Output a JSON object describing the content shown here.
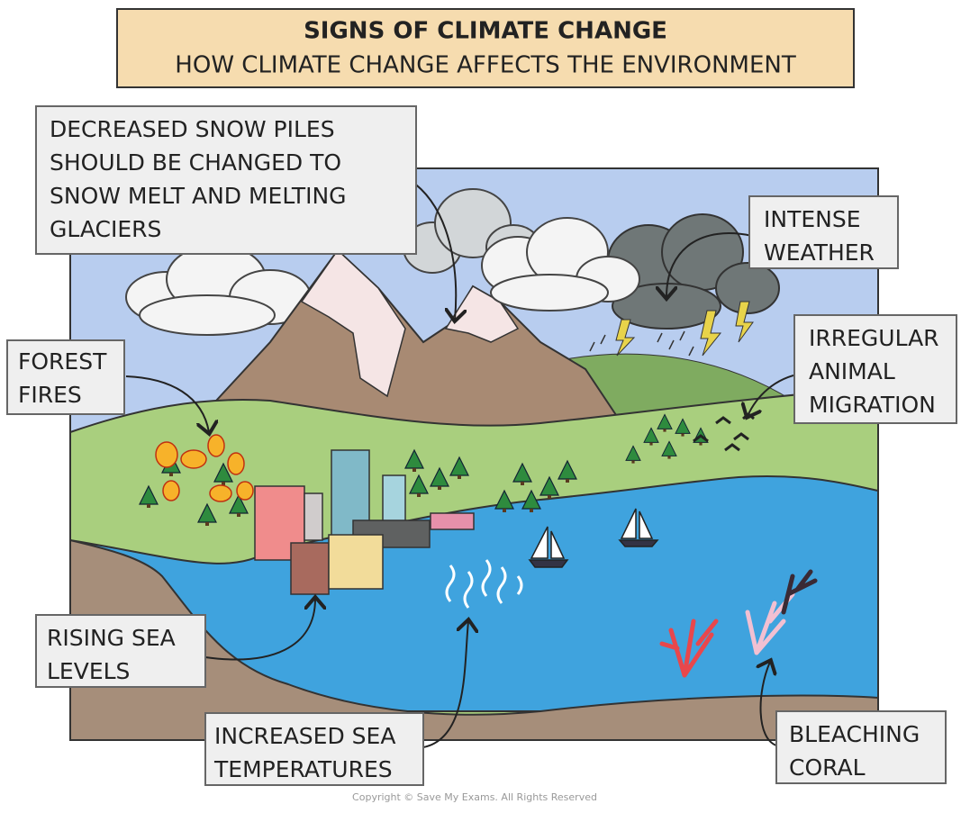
{
  "header": {
    "title": "SIGNS OF CLIMATE CHANGE",
    "subtitle": "HOW CLIMATE CHANGE AFFECTS THE ENVIRONMENT"
  },
  "labels": [
    {
      "lines": [
        "DECREASED SNOW PILES",
        "SHOULD BE CHANGED TO",
        "SNOW MELT AND MELTING",
        "GLACIERS"
      ]
    },
    {
      "lines": [
        "INTENSE",
        "WEATHER"
      ]
    },
    {
      "lines": [
        "FOREST",
        "FIRES"
      ]
    },
    {
      "lines": [
        "IRREGULAR",
        "ANIMAL",
        "MIGRATION"
      ]
    },
    {
      "lines": [
        "RISING SEA",
        "LEVELS"
      ]
    },
    {
      "lines": [
        "INCREASED SEA",
        "TEMPERATURES"
      ]
    },
    {
      "lines": [
        "BLEACHING",
        "CORAL"
      ]
    }
  ],
  "copyright": "Copyright © Save My Exams. All Rights Reserved"
}
